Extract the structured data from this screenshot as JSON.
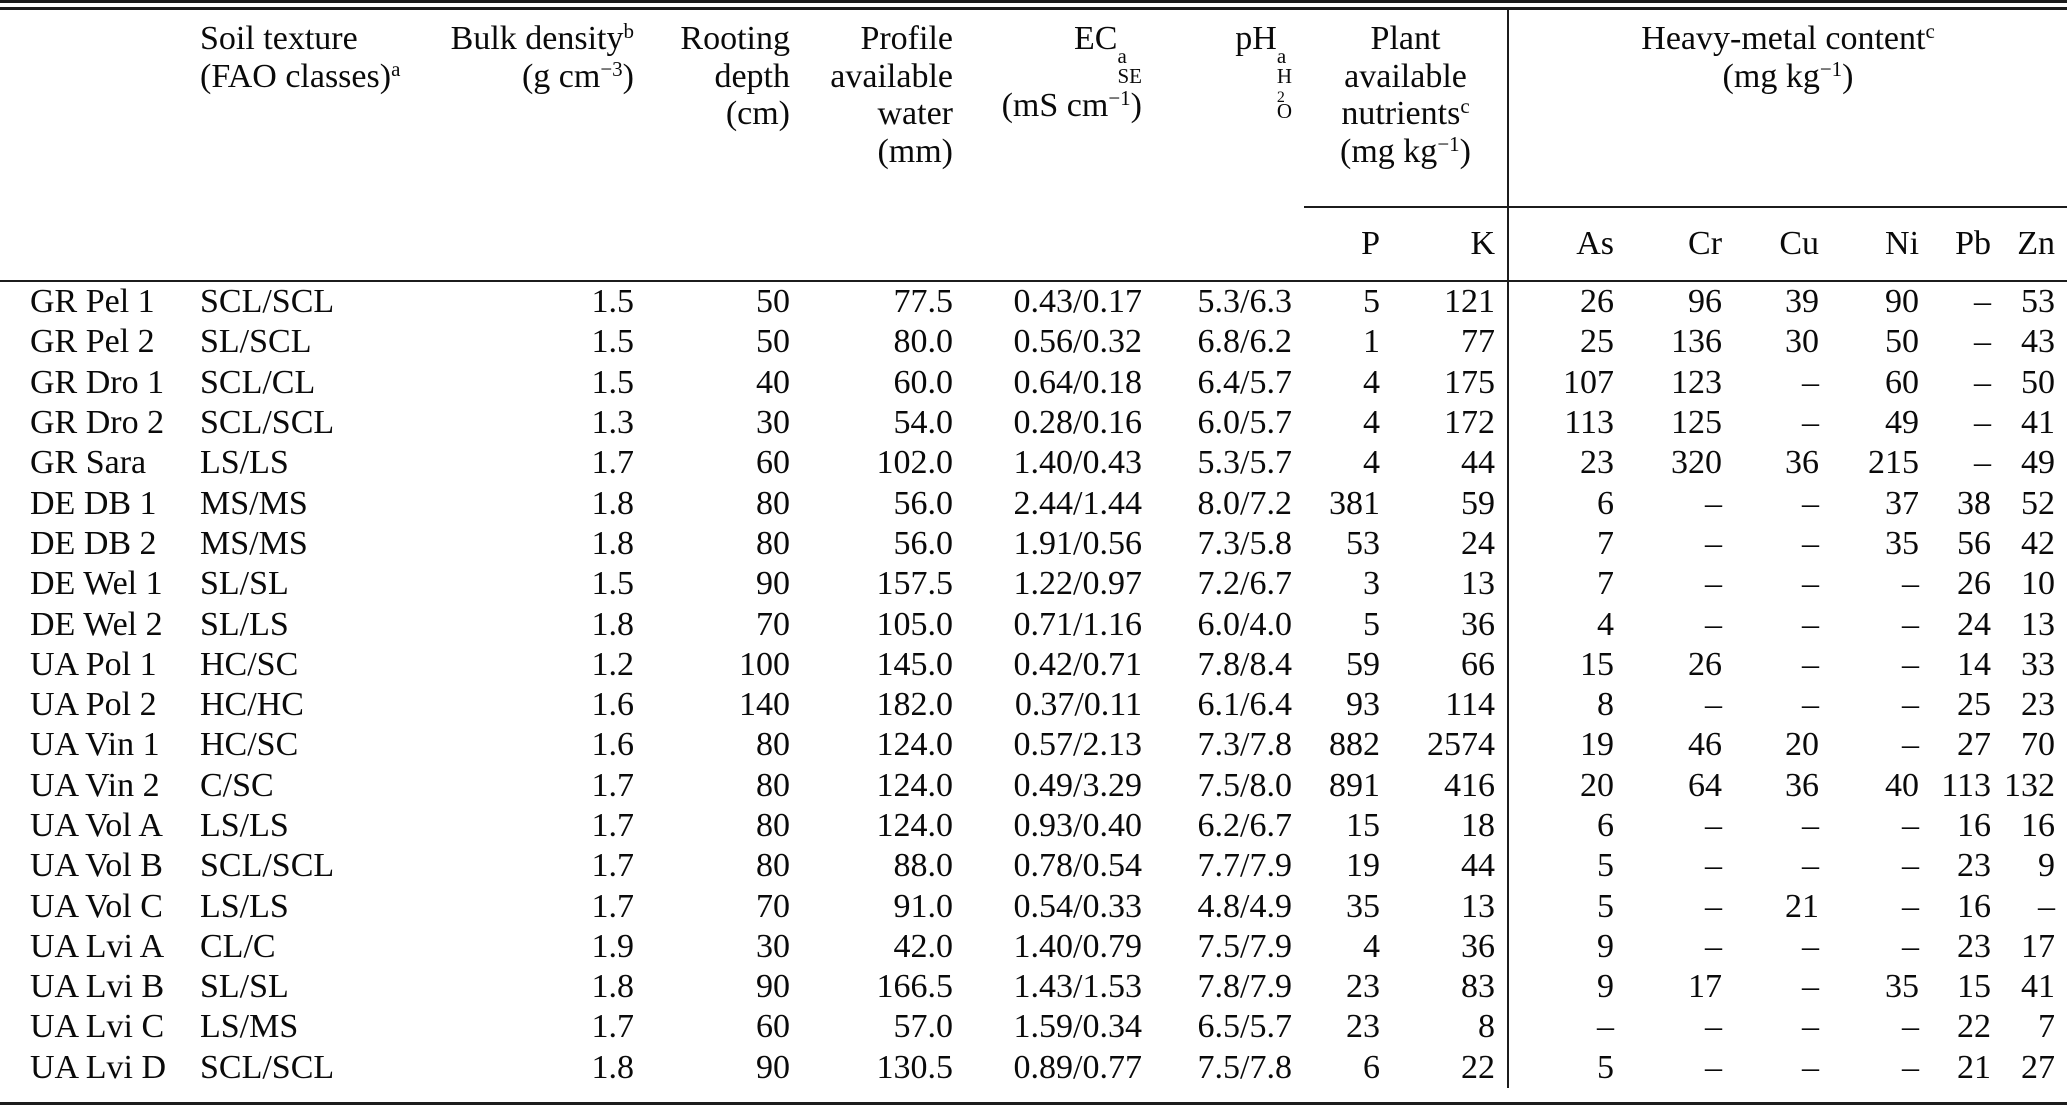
{
  "table": {
    "header": {
      "marks": {
        "a": "a",
        "b": "b",
        "c": "c"
      },
      "col_texture": {
        "line1": "Soil texture",
        "line2_main": "(FAO classes)",
        "line2_sup": "a"
      },
      "col_bulk": {
        "line1_main": "Bulk density",
        "line1_sup": "b",
        "line2_pre": "(g cm",
        "line2_sup": "−3",
        "line2_post": ")"
      },
      "col_rooting": {
        "line1": "Rooting",
        "line2": "depth",
        "line3": "(cm)"
      },
      "col_water": {
        "line1": "Profile",
        "line2": "available",
        "line3": "water",
        "line4": "(mm)"
      },
      "col_ec": {
        "base": "EC",
        "sup": "a",
        "sub": "SE",
        "unit_pre": "(mS cm",
        "unit_sup": "−1",
        "unit_post": ")"
      },
      "col_ph": {
        "base": "pH",
        "sup": "a",
        "sub_h": "H",
        "sub_2": "2",
        "sub_o": "O"
      },
      "group_nutrients": {
        "line1": "Plant",
        "line2": "available",
        "line3_main": "nutrients",
        "line3_sup": "c",
        "line4_pre": "(mg kg",
        "line4_sup": "−1",
        "line4_post": ")"
      },
      "group_heavy": {
        "line1_main": "Heavy-metal content",
        "line1_sup": "c",
        "line2_pre": "(mg kg",
        "line2_sup": "−1",
        "line2_post": ")"
      }
    },
    "subheader": [
      "P",
      "K",
      "As",
      "Cr",
      "Cu",
      "Ni",
      "Pb",
      "Zn"
    ],
    "rows": [
      [
        "GR Pel 1",
        "SCL/SCL",
        "1.5",
        "50",
        "77.5",
        "0.43/0.17",
        "5.3/6.3",
        "5",
        "121",
        "26",
        "96",
        "39",
        "90",
        "–",
        "53"
      ],
      [
        "GR Pel 2",
        "SL/SCL",
        "1.5",
        "50",
        "80.0",
        "0.56/0.32",
        "6.8/6.2",
        "1",
        "77",
        "25",
        "136",
        "30",
        "50",
        "–",
        "43"
      ],
      [
        "GR Dro 1",
        "SCL/CL",
        "1.5",
        "40",
        "60.0",
        "0.64/0.18",
        "6.4/5.7",
        "4",
        "175",
        "107",
        "123",
        "–",
        "60",
        "–",
        "50"
      ],
      [
        "GR Dro 2",
        "SCL/SCL",
        "1.3",
        "30",
        "54.0",
        "0.28/0.16",
        "6.0/5.7",
        "4",
        "172",
        "113",
        "125",
        "–",
        "49",
        "–",
        "41"
      ],
      [
        "GR Sara",
        "LS/LS",
        "1.7",
        "60",
        "102.0",
        "1.40/0.43",
        "5.3/5.7",
        "4",
        "44",
        "23",
        "320",
        "36",
        "215",
        "–",
        "49"
      ],
      [
        "DE DB 1",
        "MS/MS",
        "1.8",
        "80",
        "56.0",
        "2.44/1.44",
        "8.0/7.2",
        "381",
        "59",
        "6",
        "–",
        "–",
        "37",
        "38",
        "52"
      ],
      [
        "DE DB 2",
        "MS/MS",
        "1.8",
        "80",
        "56.0",
        "1.91/0.56",
        "7.3/5.8",
        "53",
        "24",
        "7",
        "–",
        "–",
        "35",
        "56",
        "42"
      ],
      [
        "DE Wel 1",
        "SL/SL",
        "1.5",
        "90",
        "157.5",
        "1.22/0.97",
        "7.2/6.7",
        "3",
        "13",
        "7",
        "–",
        "–",
        "–",
        "26",
        "10"
      ],
      [
        "DE Wel 2",
        "SL/LS",
        "1.8",
        "70",
        "105.0",
        "0.71/1.16",
        "6.0/4.0",
        "5",
        "36",
        "4",
        "–",
        "–",
        "–",
        "24",
        "13"
      ],
      [
        "UA Pol 1",
        "HC/SC",
        "1.2",
        "100",
        "145.0",
        "0.42/0.71",
        "7.8/8.4",
        "59",
        "66",
        "15",
        "26",
        "–",
        "–",
        "14",
        "33"
      ],
      [
        "UA Pol 2",
        "HC/HC",
        "1.6",
        "140",
        "182.0",
        "0.37/0.11",
        "6.1/6.4",
        "93",
        "114",
        "8",
        "–",
        "–",
        "–",
        "25",
        "23"
      ],
      [
        "UA Vin 1",
        "HC/SC",
        "1.6",
        "80",
        "124.0",
        "0.57/2.13",
        "7.3/7.8",
        "882",
        "2574",
        "19",
        "46",
        "20",
        "–",
        "27",
        "70"
      ],
      [
        "UA Vin 2",
        "C/SC",
        "1.7",
        "80",
        "124.0",
        "0.49/3.29",
        "7.5/8.0",
        "891",
        "416",
        "20",
        "64",
        "36",
        "40",
        "113",
        "132"
      ],
      [
        "UA Vol A",
        "LS/LS",
        "1.7",
        "80",
        "124.0",
        "0.93/0.40",
        "6.2/6.7",
        "15",
        "18",
        "6",
        "–",
        "–",
        "–",
        "16",
        "16"
      ],
      [
        "UA Vol B",
        "SCL/SCL",
        "1.7",
        "80",
        "88.0",
        "0.78/0.54",
        "7.7/7.9",
        "19",
        "44",
        "5",
        "–",
        "–",
        "–",
        "23",
        "9"
      ],
      [
        "UA Vol C",
        "LS/LS",
        "1.7",
        "70",
        "91.0",
        "0.54/0.33",
        "4.8/4.9",
        "35",
        "13",
        "5",
        "–",
        "21",
        "–",
        "16",
        "–"
      ],
      [
        "UA Lvi A",
        "CL/C",
        "1.9",
        "30",
        "42.0",
        "1.40/0.79",
        "7.5/7.9",
        "4",
        "36",
        "9",
        "–",
        "–",
        "–",
        "23",
        "17"
      ],
      [
        "UA Lvi B",
        "SL/SL",
        "1.8",
        "90",
        "166.5",
        "1.43/1.53",
        "7.8/7.9",
        "23",
        "83",
        "9",
        "17",
        "–",
        "35",
        "15",
        "41"
      ],
      [
        "UA Lvi C",
        "LS/MS",
        "1.7",
        "60",
        "57.0",
        "1.59/0.34",
        "6.5/5.7",
        "23",
        "8",
        "–",
        "–",
        "–",
        "–",
        "22",
        "7"
      ],
      [
        "UA Lvi D",
        "SCL/SCL",
        "1.8",
        "90",
        "130.5",
        "0.89/0.77",
        "7.5/7.8",
        "6",
        "22",
        "5",
        "–",
        "–",
        "–",
        "21",
        "27"
      ]
    ]
  }
}
